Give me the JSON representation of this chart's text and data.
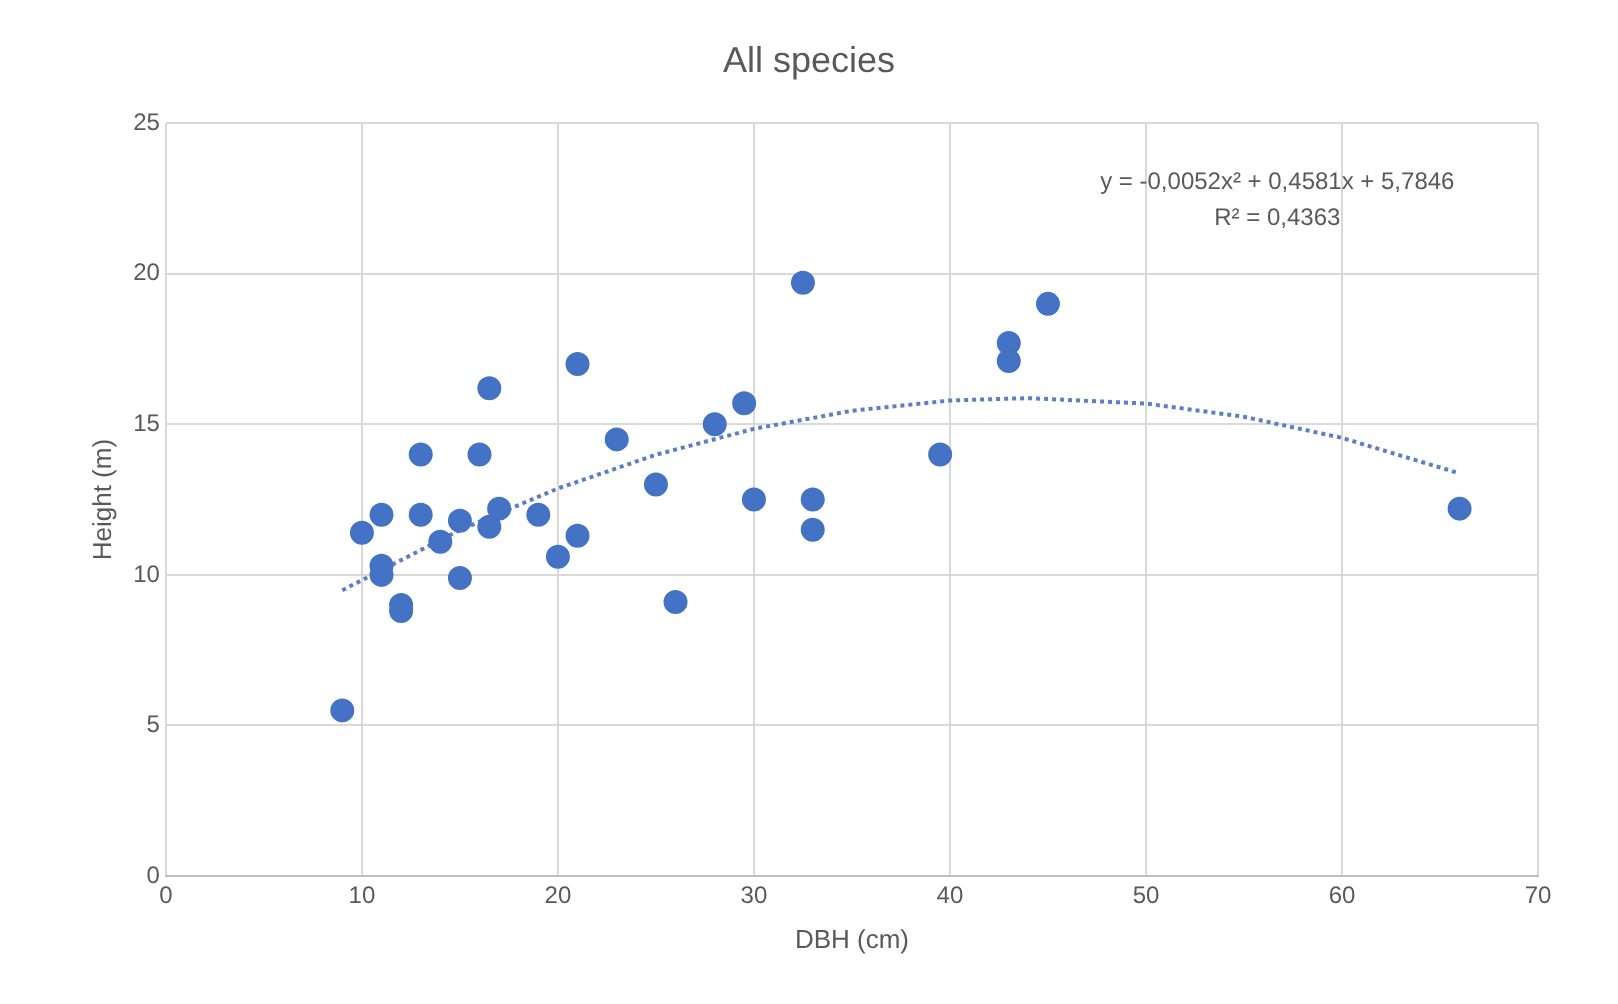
{
  "chart_data": {
    "type": "scatter",
    "title": "All species",
    "xlabel": "DBH (cm)",
    "ylabel": "Height (m)",
    "xlim": [
      0,
      70
    ],
    "xticks": [
      0,
      10,
      20,
      30,
      40,
      50,
      60,
      70
    ],
    "ylim": [
      0,
      25
    ],
    "yticks": [
      0,
      5,
      10,
      15,
      20,
      25
    ],
    "grid": true,
    "legend": false,
    "marker": "circle",
    "series": [
      {
        "color": "#4472c4",
        "x": [
          9,
          10,
          11,
          11,
          11,
          12,
          12,
          13,
          13,
          14,
          15,
          15,
          16,
          16.5,
          16.5,
          17,
          19,
          20,
          21,
          21,
          23,
          25,
          26,
          28,
          29.5,
          30,
          32.5,
          33,
          33,
          39.5,
          43,
          43,
          45,
          66
        ],
        "values": [
          5.5,
          11.4,
          12,
          10.3,
          10,
          9,
          8.8,
          14,
          12,
          11.1,
          11.8,
          9.9,
          14,
          16.2,
          11.6,
          12.2,
          12,
          10.6,
          17,
          11.3,
          14.5,
          13,
          9.1,
          15,
          15.7,
          12.5,
          19.7,
          12.5,
          11.5,
          14,
          17.7,
          17.1,
          19,
          12.2
        ]
      },
      {
        "type": "line",
        "color": "#5b7fc4",
        "line_style": "dotted",
        "marker": "none",
        "x": [
          9,
          15,
          20,
          25,
          30,
          35,
          40,
          44,
          50,
          55,
          60,
          66
        ],
        "values": [
          9.49,
          11.49,
          12.87,
          13.99,
          14.85,
          15.45,
          15.79,
          15.87,
          15.69,
          15.25,
          14.55,
          13.37
        ]
      }
    ],
    "annotations": [
      "y = -0,0052x² + 0,4581x + 5,7846",
      "R² = 0,4363"
    ]
  }
}
